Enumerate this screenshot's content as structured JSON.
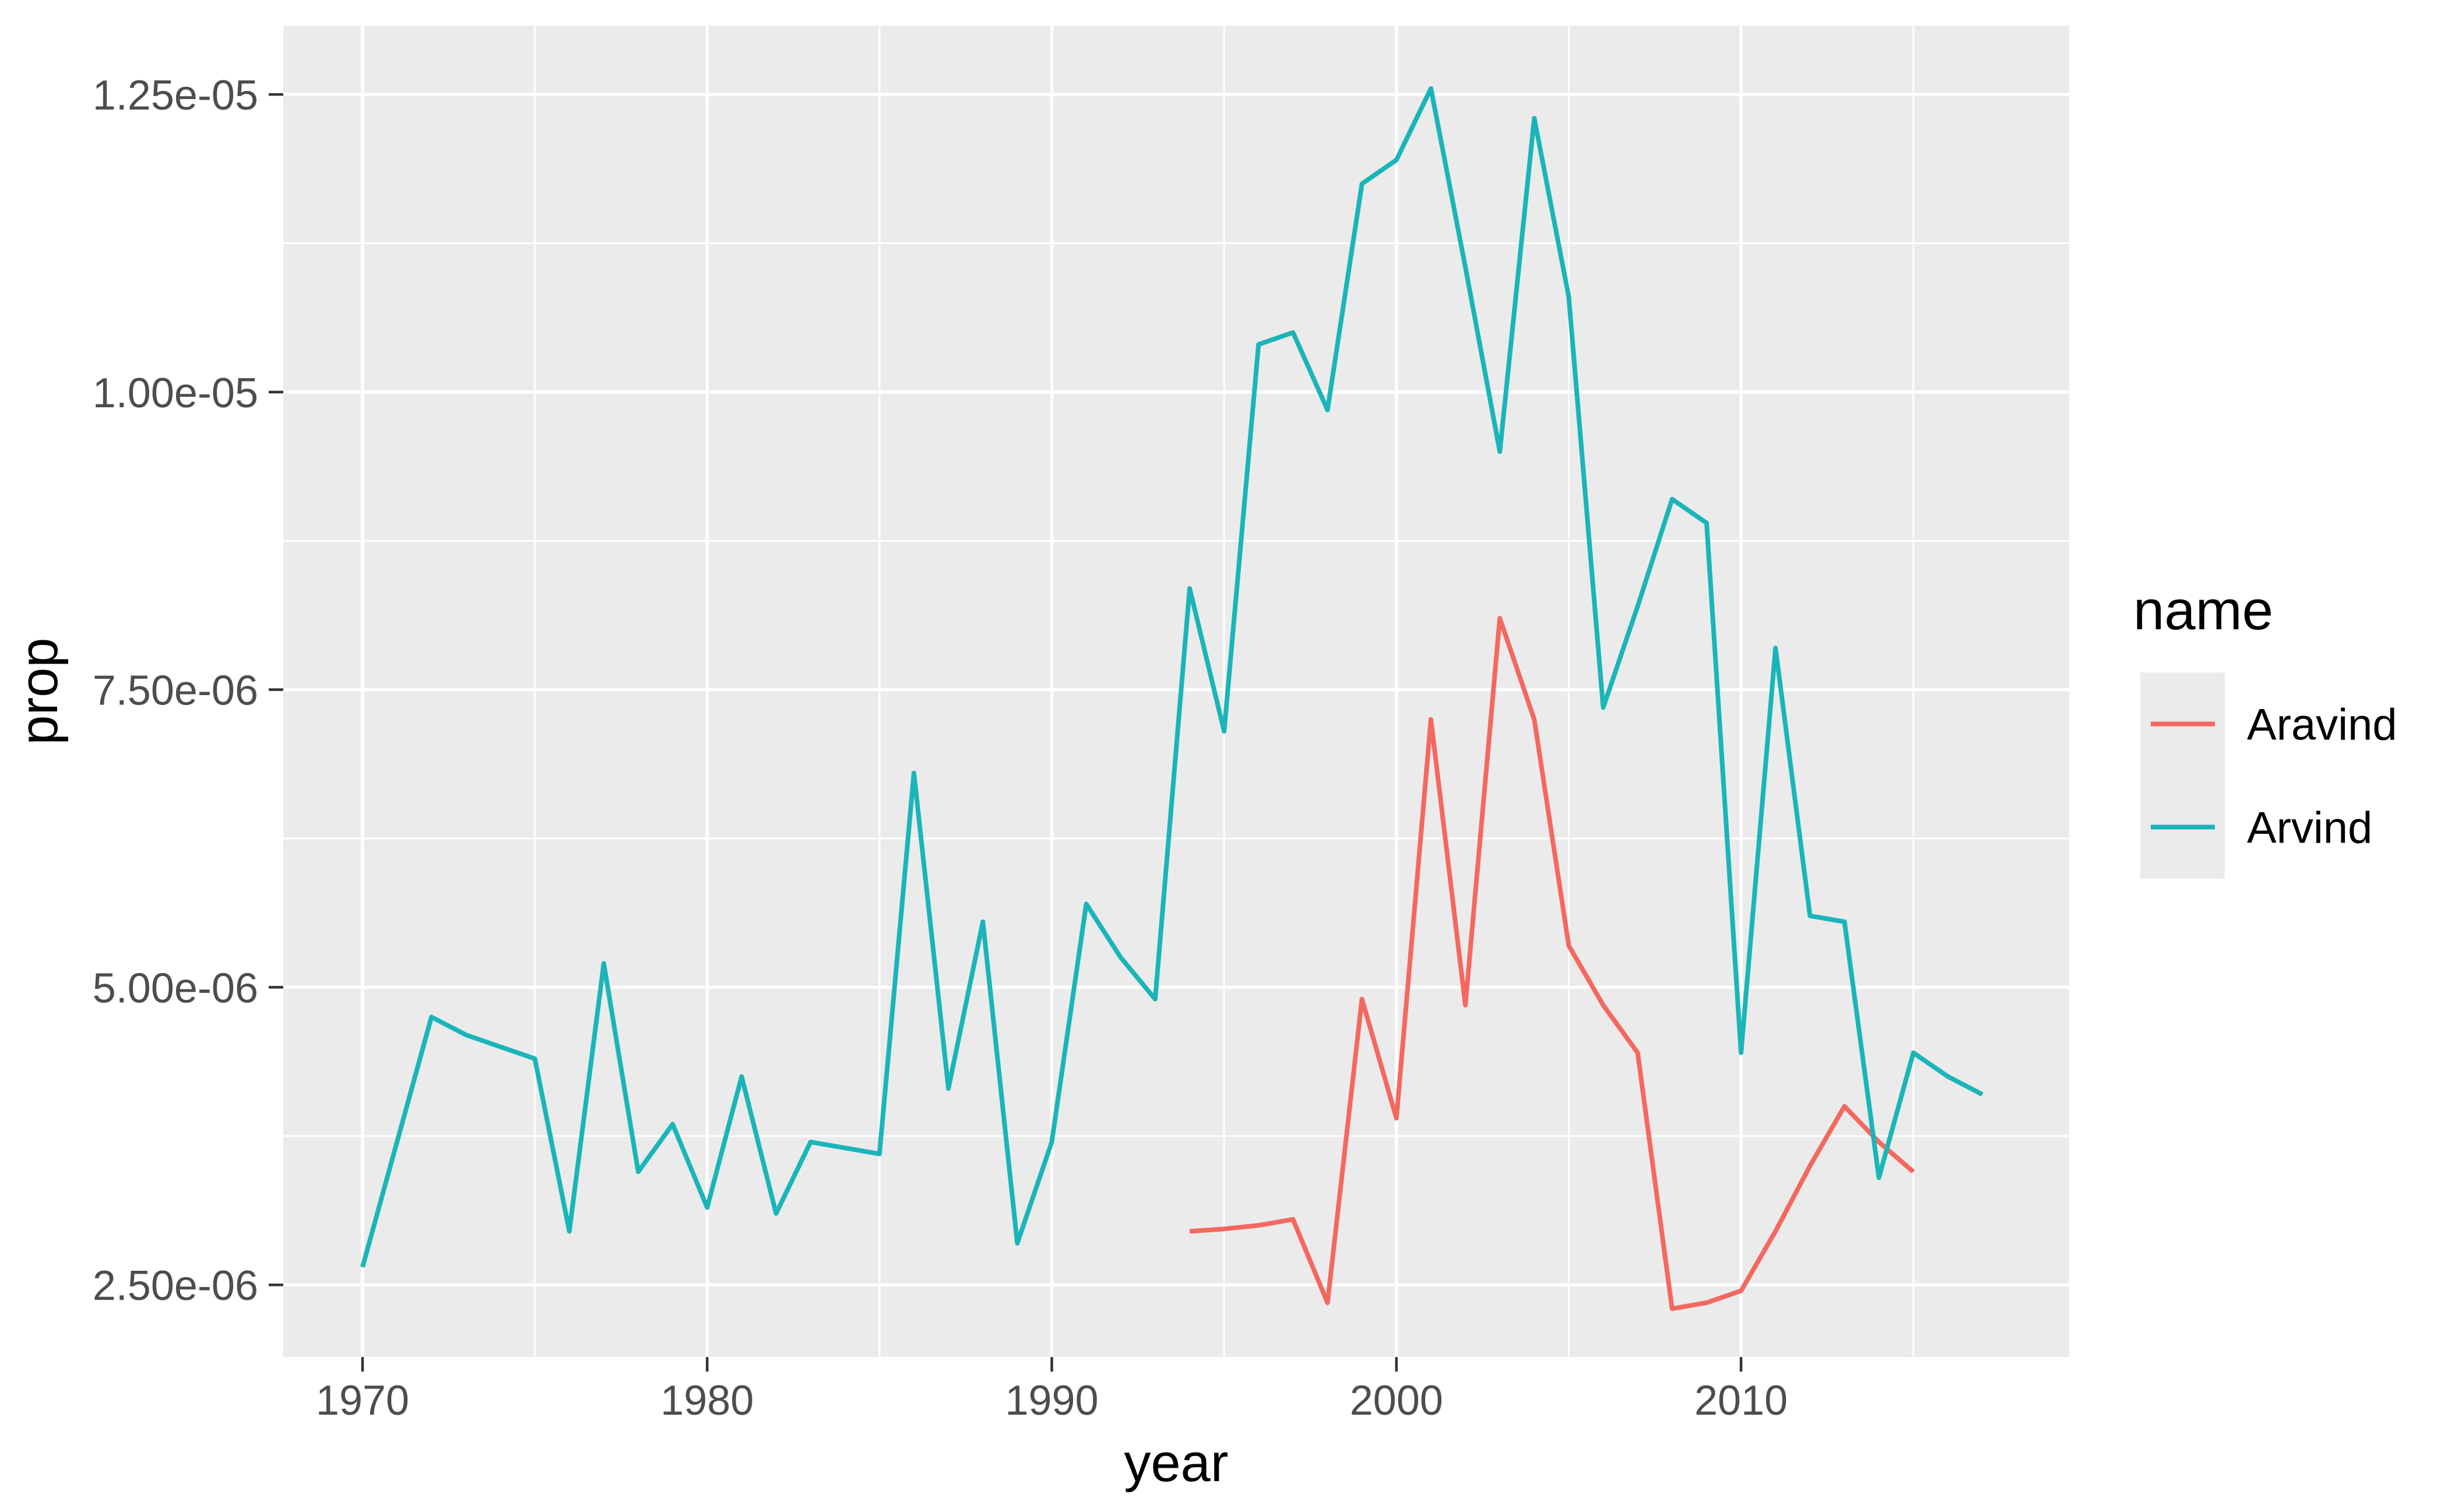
{
  "figure": {
    "kind": "ggplot-line-chart",
    "background": "#FFFFFF"
  },
  "chart_data": {
    "type": "line",
    "title": "",
    "xlabel": "year",
    "ylabel": "prop",
    "grid": true,
    "legend_position": "right",
    "x_axis": {
      "title": "year",
      "domain": [
        1967.7,
        2019.52
      ],
      "ticks": [
        1970,
        1980,
        1990,
        2000,
        2010
      ],
      "tick_labels": [
        "1970",
        "1980",
        "1990",
        "2000",
        "2010"
      ],
      "minor_ticks": [
        1975,
        1985,
        1995,
        2005,
        2015
      ]
    },
    "y_axis": {
      "title": "prop",
      "domain": [
        1.894e-06,
        1.3078e-05
      ],
      "ticks": [
        2.5e-06,
        5e-06,
        7.5e-06,
        1e-05,
        1.25e-05
      ],
      "tick_labels": [
        "2.50e-06",
        "5.00e-06",
        "7.50e-06",
        "1.00e-05",
        "1.25e-05"
      ],
      "minor_ticks": [
        3.75e-06,
        6.25e-06,
        8.75e-06,
        1.125e-05
      ]
    },
    "legend": {
      "title": "name",
      "entries": [
        {
          "label": "Aravind",
          "color": "#F5685F"
        },
        {
          "label": "Arvind",
          "color": "#1AB5B9"
        }
      ]
    },
    "series": [
      {
        "name": "Aravind",
        "color": "#F5685F",
        "x": [
          1994,
          1995,
          1996,
          1997,
          1998,
          1999,
          2000,
          2001,
          2002,
          2003,
          2004,
          2005,
          2006,
          2007,
          2008,
          2009,
          2010,
          2011,
          2012,
          2013,
          2014,
          2015
        ],
        "y": [
          2.95e-06,
          2.97e-06,
          3e-06,
          3.05e-06,
          2.35e-06,
          4.9e-06,
          3.9e-06,
          7.25e-06,
          4.85e-06,
          8.1e-06,
          7.25e-06,
          5.35e-06,
          4.85e-06,
          4.45e-06,
          2.3e-06,
          2.35e-06,
          2.45e-06,
          2.95e-06,
          3.5e-06,
          4e-06,
          3.7e-06,
          3.45e-06
        ]
      },
      {
        "name": "Arvind",
        "color": "#1AB5B9",
        "x": [
          1970,
          1971,
          1972,
          1973,
          1974,
          1975,
          1976,
          1977,
          1978,
          1979,
          1980,
          1981,
          1982,
          1983,
          1984,
          1985,
          1986,
          1987,
          1988,
          1989,
          1990,
          1991,
          1992,
          1993,
          1994,
          1995,
          1996,
          1997,
          1998,
          1999,
          2000,
          2001,
          2002,
          2003,
          2004,
          2005,
          2006,
          2007,
          2008,
          2009,
          2010,
          2011,
          2012,
          2013,
          2014,
          2015,
          2016,
          2017
        ],
        "y": [
          2.65e-06,
          3.7e-06,
          4.75e-06,
          4.6e-06,
          4.5e-06,
          4.4e-06,
          2.95e-06,
          5.2e-06,
          3.45e-06,
          3.85e-06,
          3.15e-06,
          4.25e-06,
          3.1e-06,
          3.7e-06,
          3.65e-06,
          3.6e-06,
          6.8e-06,
          4.15e-06,
          5.55e-06,
          2.85e-06,
          3.7e-06,
          5.7e-06,
          5.25e-06,
          4.9e-06,
          8.35e-06,
          7.15e-06,
          1.04e-05,
          1.05e-05,
          9.85e-06,
          1.175e-05,
          1.195e-05,
          1.255e-05,
          1.105e-05,
          9.5e-06,
          1.23e-05,
          1.08e-05,
          7.35e-06,
          8.2e-06,
          9.1e-06,
          8.9e-06,
          4.45e-06,
          7.85e-06,
          5.6e-06,
          5.55e-06,
          3.4e-06,
          4.45e-06,
          4.25e-06,
          4.1e-06
        ]
      }
    ],
    "style": {
      "panel_bg": "#EBEBEB",
      "grid_color": "#FFFFFF",
      "tick_color": "#333333",
      "tick_label_color": "#4D4D4D",
      "title_color": "#000000",
      "legend_key_bg": "#EBEBEB",
      "line_width": 8
    }
  }
}
